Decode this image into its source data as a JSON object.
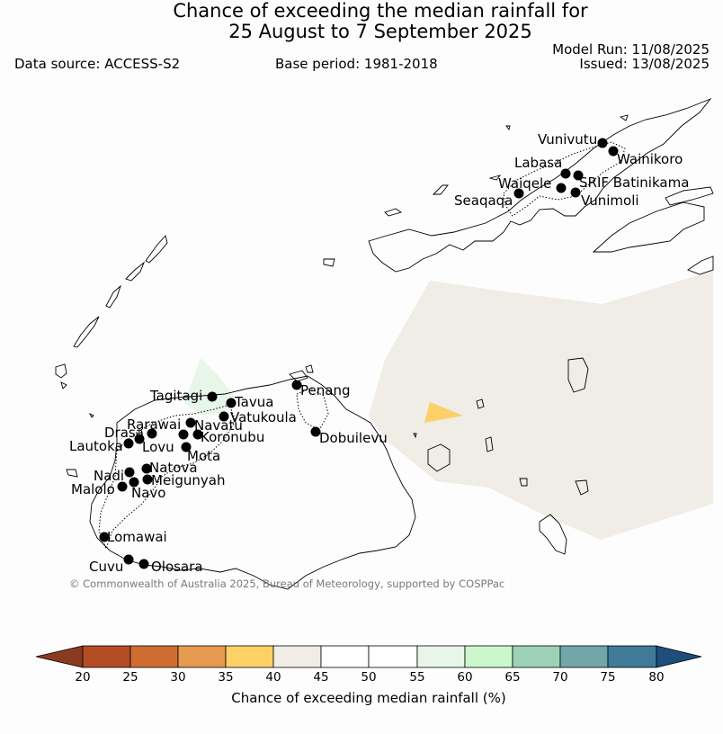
{
  "header": {
    "title_line1": "Chance of exceeding the median rainfall for",
    "title_line2": "25 August to 7 September 2025",
    "data_source": "Data source: ACCESS-S2",
    "base_period": "Base period: 1981-2018",
    "model_run": "Model Run: 11/08/2025",
    "issued": "Issued: 13/08/2025"
  },
  "map": {
    "credit": "© Commonwealth of Australia 2025, Bureau of Meteorology, supported by COSPPac",
    "stations": [
      {
        "name": "Vunivutu"
      },
      {
        "name": "Wainikoro"
      },
      {
        "name": "Labasa"
      },
      {
        "name": "Waiqele"
      },
      {
        "name": "SRIF Batinikama"
      },
      {
        "name": "Seaqaqa"
      },
      {
        "name": "Vunimoli"
      },
      {
        "name": "Tagitagi"
      },
      {
        "name": "Tavua"
      },
      {
        "name": "Penang"
      },
      {
        "name": "Vatukoula"
      },
      {
        "name": "Rarawai"
      },
      {
        "name": "Navatu"
      },
      {
        "name": "Drasa"
      },
      {
        "name": "Koronubu"
      },
      {
        "name": "Dobuilevu"
      },
      {
        "name": "Lautoka"
      },
      {
        "name": "Lovu"
      },
      {
        "name": "Mota"
      },
      {
        "name": "Natova"
      },
      {
        "name": "Nadi"
      },
      {
        "name": "Meigunyah"
      },
      {
        "name": "Malolo"
      },
      {
        "name": "Navo"
      },
      {
        "name": "Lomawai"
      },
      {
        "name": "Cuvu"
      },
      {
        "name": "Olosara"
      }
    ]
  },
  "legend": {
    "title": "Chance of exceeding median rainfall (%)",
    "ticks": [
      "20",
      "25",
      "30",
      "35",
      "40",
      "45",
      "50",
      "55",
      "60",
      "65",
      "70",
      "75",
      "80"
    ],
    "colors": [
      "#8b3a22",
      "#b44c26",
      "#cf6c32",
      "#e59a4f",
      "#fdd068",
      "#f0ece6",
      "#ffffff",
      "#ffffff",
      "#e8f5e9",
      "#ccf7cd",
      "#9ed2b6",
      "#72a6a8",
      "#3f7a98",
      "#1e4e7c"
    ]
  }
}
